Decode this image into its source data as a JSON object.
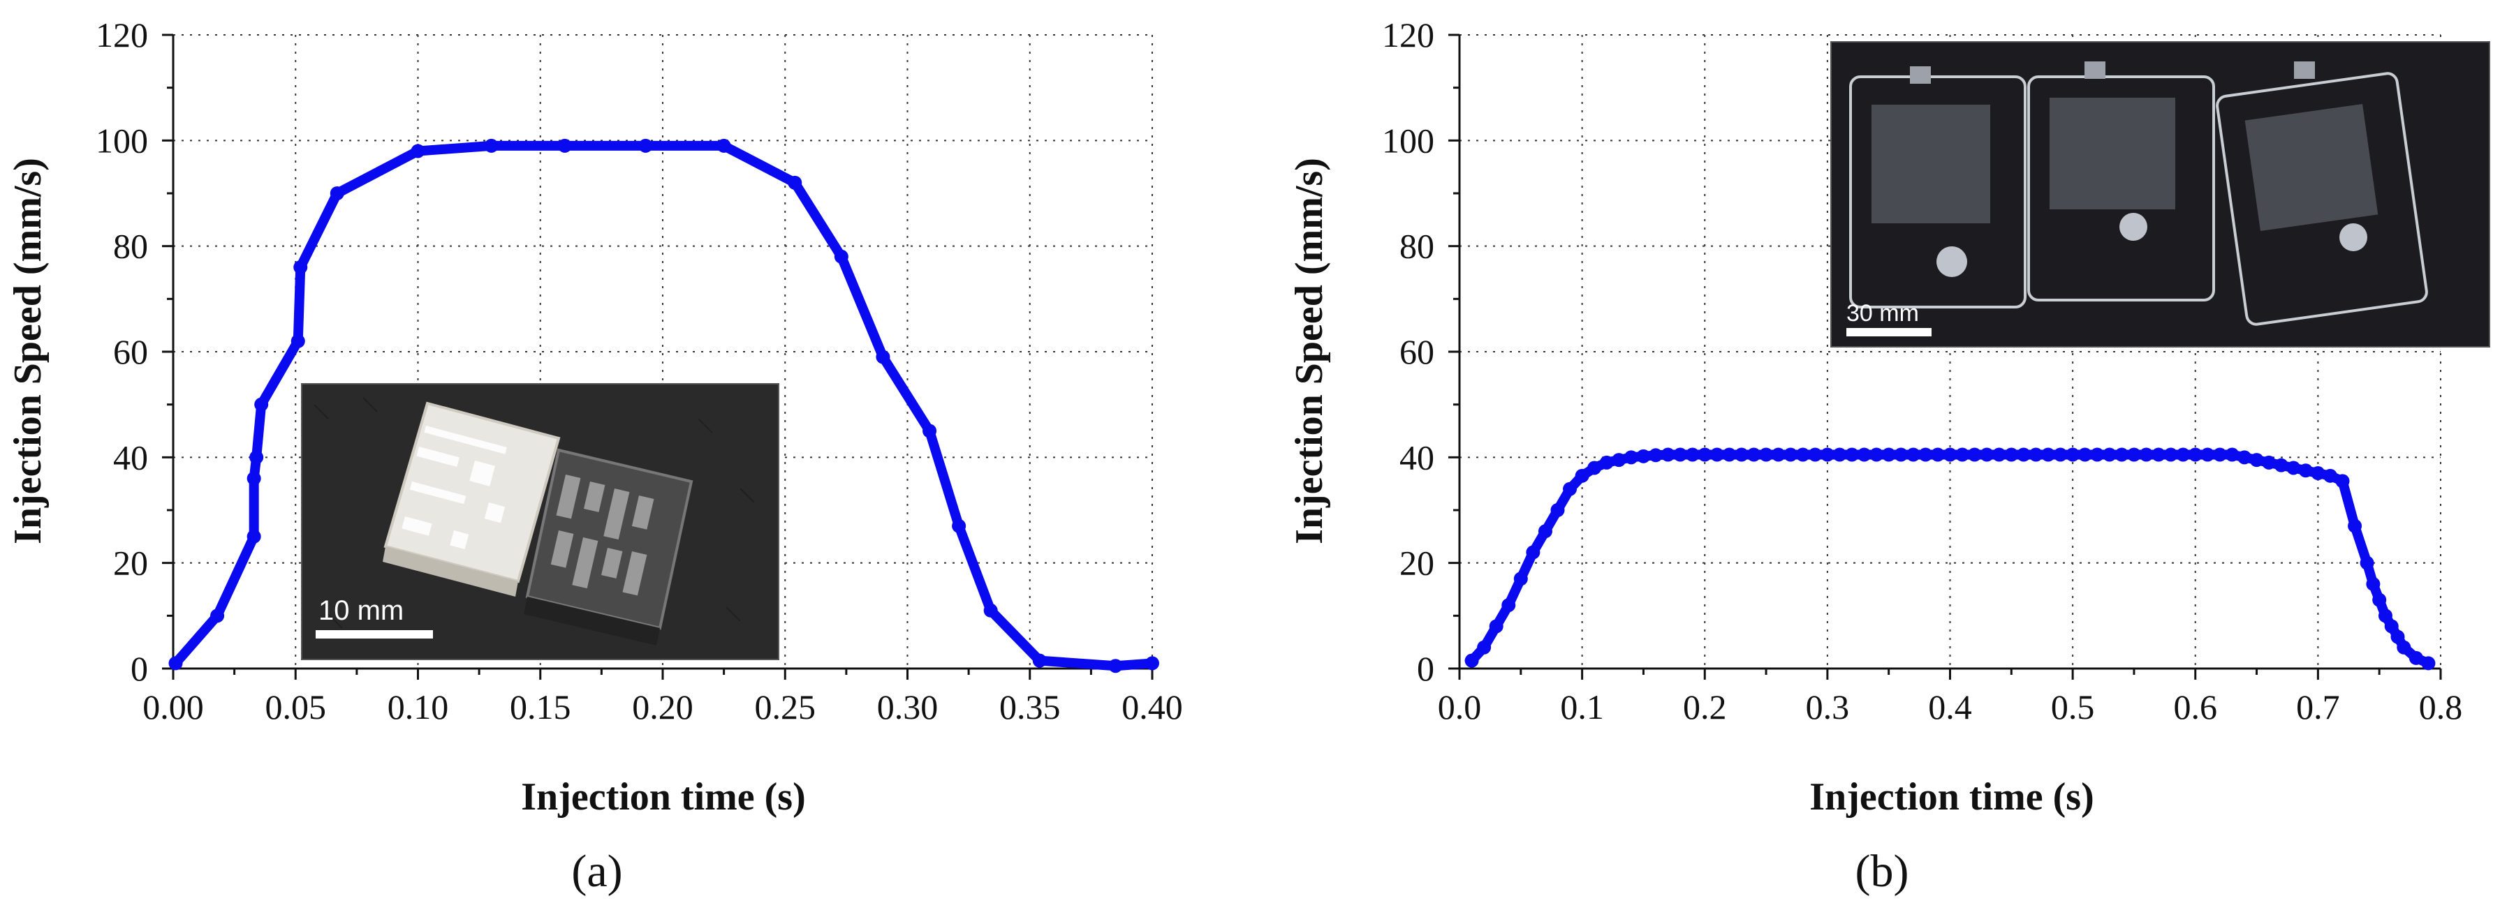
{
  "colors": {
    "series": "#0a0af0",
    "grid": "#333333",
    "axis": "#111111"
  },
  "chart_data": [
    {
      "type": "line",
      "panel_label": "(a)",
      "xlabel": "Injection time (s)",
      "ylabel": "Injection Speed (mm/s)",
      "xlim": [
        0,
        0.4
      ],
      "ylim": [
        0,
        120
      ],
      "x_ticks": [
        "0.00",
        "0.05",
        "0.10",
        "0.15",
        "0.20",
        "0.25",
        "0.30",
        "0.35",
        "0.40"
      ],
      "y_ticks": [
        "0",
        "20",
        "40",
        "60",
        "80",
        "100",
        "120"
      ],
      "grid": true,
      "inset": {
        "kind": "photo",
        "subject": "two 3D-printed square parts with perforation pattern",
        "scale_bar_label": "10 mm"
      },
      "series": [
        {
          "x": [
            0.001,
            0.018,
            0.033,
            0.033,
            0.034,
            0.036,
            0.051,
            0.052,
            0.067,
            0.1,
            0.13,
            0.16,
            0.193,
            0.225,
            0.254,
            0.273,
            0.29,
            0.309,
            0.321,
            0.334,
            0.354,
            0.385,
            0.4
          ],
          "y": [
            1,
            10,
            25,
            36,
            40,
            50,
            62,
            76,
            90,
            98,
            99,
            99,
            99,
            99,
            92,
            78,
            59,
            45,
            27,
            11,
            1.5,
            0.5,
            1
          ]
        }
      ]
    },
    {
      "type": "line",
      "panel_label": "(b)",
      "xlabel": "Injection time (s)",
      "ylabel": "Injection Speed (mm/s)",
      "xlim": [
        0,
        0.8
      ],
      "ylim": [
        0,
        120
      ],
      "x_ticks": [
        "0.0",
        "0.1",
        "0.2",
        "0.3",
        "0.4",
        "0.5",
        "0.6",
        "0.7",
        "0.8"
      ],
      "y_ticks": [
        "0",
        "20",
        "40",
        "60",
        "80",
        "100",
        "120"
      ],
      "grid": true,
      "inset": {
        "kind": "photo",
        "subject": "three transparent molded plates",
        "scale_bar_label": "30 mm"
      },
      "series": [
        {
          "x": [
            0.01,
            0.02,
            0.03,
            0.04,
            0.05,
            0.06,
            0.07,
            0.08,
            0.09,
            0.1,
            0.11,
            0.12,
            0.13,
            0.14,
            0.15,
            0.16,
            0.17,
            0.18,
            0.19,
            0.2,
            0.21,
            0.22,
            0.23,
            0.24,
            0.25,
            0.26,
            0.27,
            0.28,
            0.29,
            0.3,
            0.31,
            0.32,
            0.33,
            0.34,
            0.35,
            0.36,
            0.37,
            0.38,
            0.39,
            0.4,
            0.41,
            0.42,
            0.43,
            0.44,
            0.45,
            0.46,
            0.47,
            0.48,
            0.49,
            0.5,
            0.51,
            0.52,
            0.53,
            0.54,
            0.55,
            0.56,
            0.57,
            0.58,
            0.59,
            0.6,
            0.61,
            0.62,
            0.63,
            0.64,
            0.65,
            0.66,
            0.67,
            0.68,
            0.69,
            0.7,
            0.71,
            0.72,
            0.73,
            0.74,
            0.745,
            0.75,
            0.755,
            0.76,
            0.765,
            0.77,
            0.78,
            0.79
          ],
          "y": [
            1.5,
            4,
            8,
            12,
            17,
            22,
            26,
            30,
            34,
            36.5,
            38,
            39,
            39.5,
            40,
            40.2,
            40.4,
            40.5,
            40.5,
            40.5,
            40.5,
            40.5,
            40.5,
            40.5,
            40.5,
            40.5,
            40.5,
            40.5,
            40.5,
            40.5,
            40.5,
            40.5,
            40.5,
            40.5,
            40.5,
            40.5,
            40.5,
            40.5,
            40.5,
            40.5,
            40.5,
            40.5,
            40.5,
            40.5,
            40.5,
            40.5,
            40.5,
            40.5,
            40.5,
            40.5,
            40.5,
            40.5,
            40.5,
            40.5,
            40.5,
            40.5,
            40.5,
            40.5,
            40.5,
            40.5,
            40.5,
            40.5,
            40.5,
            40.5,
            40,
            39.5,
            39,
            38.5,
            38,
            37.5,
            37,
            36.5,
            35.5,
            27,
            20,
            16,
            13,
            10,
            8,
            6,
            4,
            2,
            1
          ]
        }
      ]
    }
  ]
}
